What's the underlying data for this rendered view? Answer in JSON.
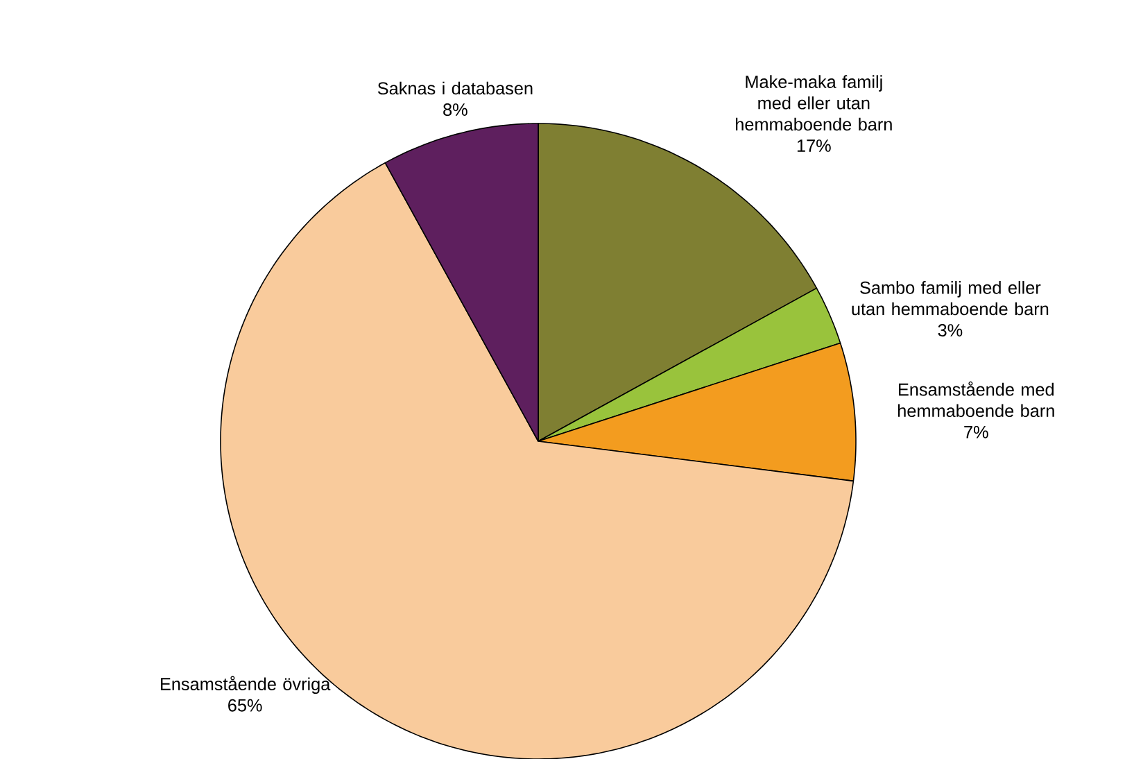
{
  "chart_data": {
    "type": "pie",
    "categories": [
      "Make-maka familj med eller utan hemmaboende barn",
      "Sambo familj med eller utan hemmaboende barn",
      "Ensamstående med hemmaboende barn",
      "Ensamstående övriga",
      "Saknas i databasen"
    ],
    "values": [
      17,
      3,
      7,
      65,
      8
    ],
    "colors": [
      "#7f7f32",
      "#99c33c",
      "#f39c1f",
      "#f9cb9c",
      "#5e1f5e"
    ],
    "value_labels": [
      "17%",
      "3%",
      "7%",
      "65%",
      "8%"
    ]
  }
}
